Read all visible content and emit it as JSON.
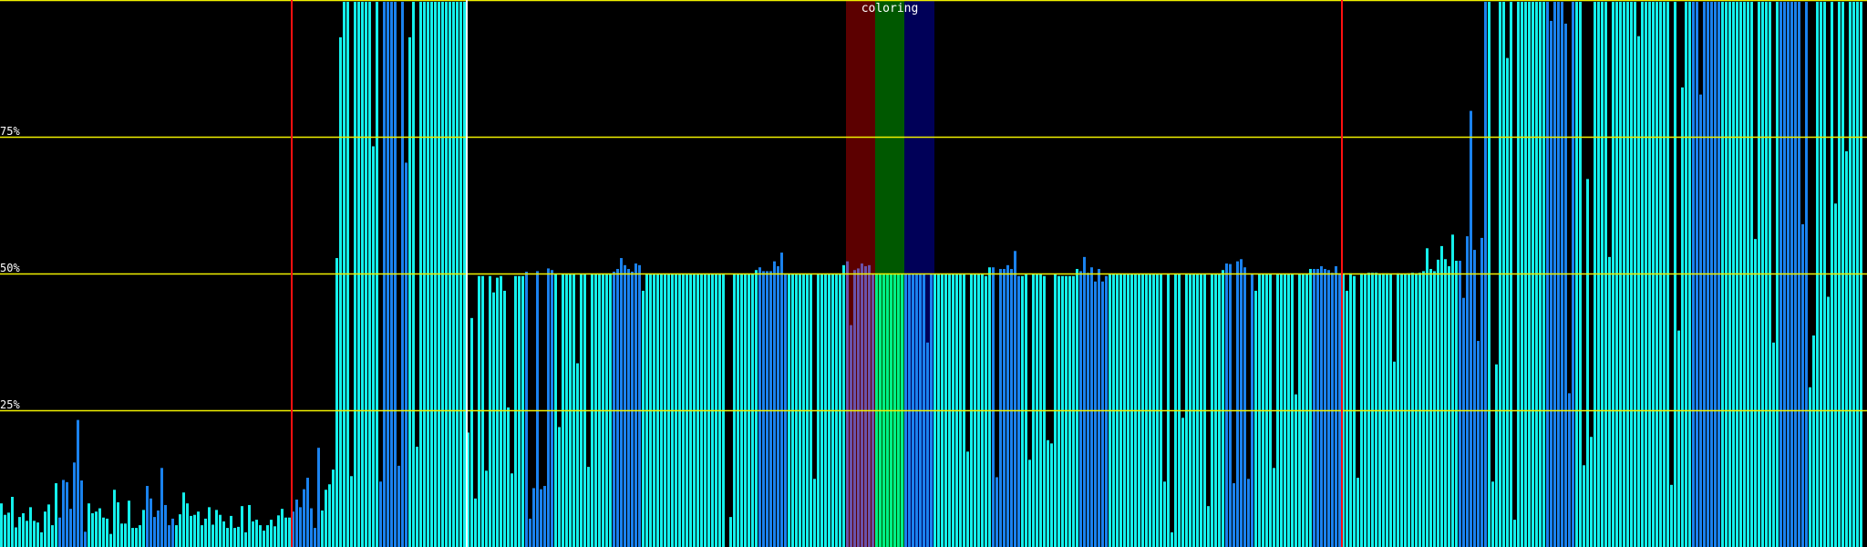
{
  "chart_data": {
    "type": "bar",
    "title": "",
    "xlabel": "",
    "ylabel": "",
    "ylim": [
      0,
      100
    ],
    "grid": true,
    "gridlines": [
      {
        "value": 100,
        "label": ""
      },
      {
        "value": 75,
        "label": "75%"
      },
      {
        "value": 50,
        "label": "50%"
      },
      {
        "value": 25,
        "label": "25%"
      }
    ],
    "colors": {
      "c": "#14f0ec",
      "b": "#1a82ee",
      "grid": "#f0f000",
      "marker": "#ff1010",
      "cursor": "#ffffff",
      "background": "#000000"
    },
    "markers_at_bar": [
      80,
      368
    ],
    "cursor_at_bar": 128,
    "band_group": {
      "label": "coloring",
      "bands": [
        {
          "from": 232,
          "to": 239,
          "background": "#5c0000",
          "bar_color": "#6a52aa"
        },
        {
          "from": 240,
          "to": 247,
          "background": "#005800",
          "bar_color": "#00f088"
        },
        {
          "from": 248,
          "to": 255,
          "background": "#000058",
          "bar_color": "#1a82ee"
        }
      ]
    },
    "bar_colors": "cccccccc cccccccc bbbbbbbb cccccccc cccccccc bbbbbbbb cccccccc cccccccc cccccccc cccccccc bbbbbbbb cccccccc cccccccc bbbbbbbb cccccccc cccccccc cccccccc cccccccc bbbbbbbb cccccccc cccccccc bbbbbbbb cccccccc cccccccc cccccccc cccccccc bbbbbbbb cccccccc cccccccc bbbbbbbb bbbbbbbb bbbbbbbb cccccccc cccccccc bbbbbbbb cccccccc cccccccc bbbbbbbb cccccccc cccccccc cccccccc cccccccc bbbbbbbb cccccccc cccccccc bbbbbbbb cccccccc cccccccc cccccccc cccccccc bbbbbbbb cccccccc cccccccc bbbbbbbb cccccccc cccccccc cccccccc cccccccc bbbbbbbb cccccccc cccccccc bbbbbbbb cccccccc cccccccc",
    "values": [
      8,
      5.9,
      6.3,
      9.2,
      3.6,
      5.5,
      6.2,
      4.8,
      7.3,
      4.8,
      4.5,
      2.7,
      6.5,
      7.8,
      4,
      11.7,
      5.4,
      12.3,
      11.9,
      7,
      15.5,
      23.3,
      12.2,
      2.8,
      8,
      6.2,
      6.5,
      7.1,
      5.4,
      5.2,
      2.4,
      10.5,
      8.2,
      4.3,
      4.3,
      8.5,
      3.5,
      3.5,
      4,
      6.8,
      11.2,
      8.9,
      5.5,
      6.7,
      14.5,
      7.7,
      4,
      5.2,
      4,
      6,
      10,
      8,
      5.7,
      5.9,
      6.5,
      4,
      5.2,
      7.3,
      4.1,
      6.8,
      5.9,
      4.7,
      3.5,
      5.7,
      3.5,
      3.7,
      7.5,
      2.7,
      7.7,
      4.7,
      5,
      4,
      3,
      4,
      5,
      3.8,
      5.8,
      7,
      5.4,
      5.4,
      6.5,
      8.7,
      7.3,
      10.6,
      12.7,
      7.1,
      3.5,
      18.2,
      6.7,
      10.5,
      11.5,
      14.2,
      53,
      93.5,
      100,
      100,
      13,
      100,
      100,
      100,
      100,
      100,
      73.5,
      100,
      12,
      100,
      100,
      100,
      100,
      14.9,
      100,
      70.5,
      93.5,
      100,
      18.4,
      100,
      100,
      100,
      100,
      100,
      100,
      100,
      100,
      100,
      100,
      100,
      100,
      100,
      21,
      42,
      8.9,
      49.7,
      49.7,
      14,
      49.7,
      46.7,
      49.4,
      49.7,
      47,
      25.6,
      13.5,
      49.7,
      49.7,
      49.7,
      50.5,
      5.2,
      10.8,
      50.6,
      10.6,
      11.2,
      51.1,
      50.8,
      50,
      22,
      50,
      50,
      50,
      50,
      33.7,
      50,
      50,
      14.7,
      50,
      50,
      50,
      50,
      50,
      50,
      50.5,
      51,
      53,
      51.7,
      51,
      50.5,
      52,
      51.7,
      47,
      50,
      50,
      50,
      50,
      50,
      50,
      50,
      50,
      50,
      50,
      50,
      50,
      50,
      50,
      50,
      50,
      50,
      50,
      50,
      50,
      50,
      50,
      0,
      5.5,
      50,
      50,
      50,
      50,
      50,
      50,
      50.8,
      51.3,
      50.6,
      50.6,
      50.6,
      52.4,
      51.5,
      54,
      50,
      50,
      50,
      50,
      50,
      50,
      50,
      50,
      12.5,
      50,
      50,
      50,
      50,
      50,
      50,
      50,
      51.7,
      52.4,
      40.7,
      50.8,
      51.1,
      52,
      51.5,
      51.7,
      50,
      50,
      50,
      50,
      50,
      50,
      50,
      50,
      50,
      50,
      50,
      50,
      50,
      50,
      50,
      37.5,
      50,
      50,
      50,
      50,
      50,
      50,
      50,
      50,
      50,
      50,
      17.5,
      50,
      50,
      50,
      50,
      49.7,
      51.3,
      51.3,
      12.8,
      51,
      51,
      51.7,
      51,
      54.3,
      49.7,
      49.7,
      50,
      16,
      50,
      50,
      50,
      49.7,
      19.6,
      19,
      50,
      49.7,
      49.7,
      49.7,
      49.7,
      49.7,
      51,
      50.6,
      53.2,
      50.3,
      51.3,
      48.7,
      51,
      48.7,
      49.7,
      50,
      50,
      50,
      50,
      50,
      50,
      50,
      50,
      50,
      50,
      50,
      50,
      50,
      50,
      50,
      12,
      50,
      2.7,
      50,
      50,
      23.7,
      50,
      50,
      50,
      50,
      50,
      50,
      7.5,
      50,
      50,
      50,
      50.8,
      52,
      51.9,
      11.7,
      52.4,
      52.8,
      51.3,
      12.5,
      50,
      47,
      50,
      50,
      50,
      50,
      14.5,
      50,
      50,
      50,
      50,
      50,
      28,
      50,
      50,
      50,
      51,
      51,
      51,
      51.5,
      51,
      50.8,
      50.3,
      51.5,
      50.2,
      50.2,
      47,
      50.2,
      49.7,
      12.7,
      50.2,
      50,
      50.3,
      50.3,
      50.3,
      50,
      50.2,
      50.2,
      50,
      34,
      50.2,
      50,
      50,
      50.2,
      50.3,
      50.2,
      50.3,
      50.6,
      54.8,
      51,
      50.6,
      52.7,
      55.2,
      52.8,
      51.5,
      57.3,
      52.5,
      52.5,
      45.7,
      57,
      80,
      54.5,
      37.8,
      56.7,
      100,
      100,
      12,
      33.5,
      100,
      100,
      89.7,
      100,
      5,
      100,
      100,
      100,
      100,
      100,
      100,
      100,
      100,
      100,
      96.5,
      100,
      100,
      100,
      96,
      28.2,
      100,
      100,
      100,
      15,
      67.5,
      20.2,
      100,
      100,
      100,
      100,
      53.2,
      100,
      100,
      100,
      100,
      100,
      100,
      100,
      93.7,
      100,
      100,
      100,
      100,
      100,
      100,
      100,
      100,
      11.4,
      100,
      39.7,
      84.3,
      100,
      100,
      100,
      100,
      83,
      100,
      100,
      100,
      100,
      100,
      100,
      100,
      100,
      100,
      100,
      100,
      100,
      100,
      100,
      56.5,
      100,
      100,
      100,
      100,
      37.5,
      100,
      100,
      100,
      100,
      100,
      100,
      100,
      59.2,
      100,
      29.3,
      38.8,
      100,
      100,
      100,
      45.9,
      100,
      63,
      100,
      100,
      72.6,
      100,
      100,
      100,
      100
    ]
  }
}
